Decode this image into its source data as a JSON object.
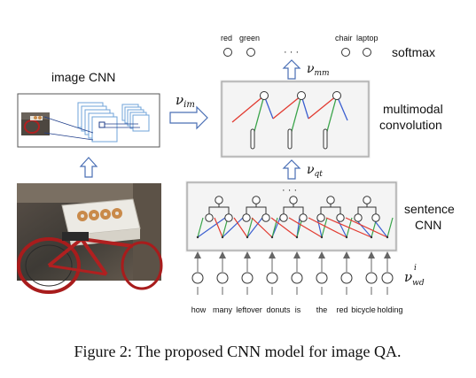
{
  "caption": "Figure 2: The proposed CNN model for image QA.",
  "image_cnn": {
    "title": "image CNN",
    "photo_description": "red bicycle with a box of donuts on the rear rack"
  },
  "multimodal": {
    "line1": "multimodal",
    "line2": "convolution"
  },
  "sentence_cnn": {
    "line1": "sentence",
    "line2": "CNN"
  },
  "softmax": {
    "label": "softmax",
    "classes_left": [
      "red",
      "green"
    ],
    "classes_right": [
      "chair",
      "laptop"
    ],
    "ellipsis": "· · ·"
  },
  "sentence_ellipsis": "· · ·",
  "vectors": {
    "im_base": "ν",
    "im_sub": "im",
    "mm_base": "ν",
    "mm_sub": "mm",
    "qt_base": "ν",
    "qt_sub": "qt",
    "wd_base": "ν",
    "wd_sub": "wd",
    "wd_sup": "i"
  },
  "words": [
    "how",
    "many",
    "leftover",
    "donuts",
    "is",
    "the",
    "red",
    "bicycle",
    "holding"
  ],
  "colors": {
    "red": "#e23a30",
    "green": "#3aa44a",
    "blue": "#3b5fd0",
    "light_blue": "#6fa3d8",
    "box_border": "#8a8a8a",
    "box_fill": "#f4f4f4",
    "arrow_blue": "#4a6fb5"
  }
}
